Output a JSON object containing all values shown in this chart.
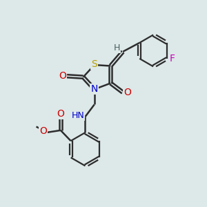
{
  "bg_color": "#dde8e8",
  "bond_color": "#2d2d2d",
  "atom_colors": {
    "S": "#b8a000",
    "N": "#0000cc",
    "O": "#cc0000",
    "F": "#cc00bb",
    "H": "#4a6060",
    "C": "#2d2d2d"
  },
  "figsize": [
    3.0,
    3.0
  ],
  "dpi": 100
}
